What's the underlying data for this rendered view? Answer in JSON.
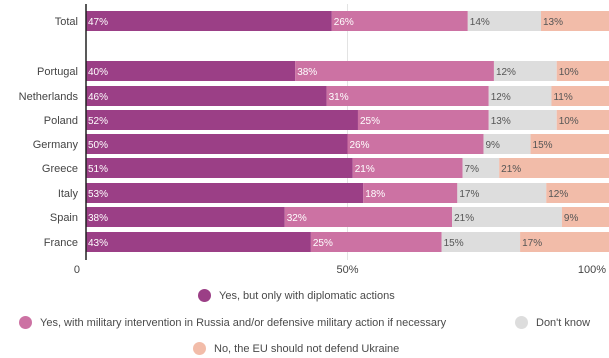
{
  "chart_data": {
    "type": "bar",
    "orientation": "horizontal",
    "stacked": true,
    "categories": [
      "Total",
      "Portugal",
      "Netherlands",
      "Poland",
      "Germany",
      "Greece",
      "Italy",
      "Spain",
      "France"
    ],
    "series": [
      {
        "name": "Yes, but only with diplomatic actions",
        "values": [
          47,
          40,
          46,
          52,
          50,
          51,
          53,
          38,
          43
        ],
        "labels": [
          "47%",
          "40%",
          "46%",
          "52%",
          "50%",
          "51%",
          "53%",
          "38%",
          "43%"
        ],
        "color": "#9b3f86"
      },
      {
        "name": "Yes, with military intervention in Russia and/or defensive military action if necessary",
        "values": [
          26,
          38,
          31,
          25,
          26,
          21,
          18,
          32,
          25
        ],
        "labels": [
          "26%",
          "38%",
          "31%",
          "25%",
          "26%",
          "21%",
          "18%",
          "32%",
          "25%"
        ],
        "color": "#cc72a3"
      },
      {
        "name": "Don't know",
        "values": [
          14,
          12,
          12,
          13,
          9,
          7,
          17,
          21,
          15
        ],
        "labels": [
          "14%",
          "12%",
          "12%",
          "13%",
          "9%",
          "7%",
          "17%",
          "21%",
          "15%"
        ],
        "color": "#dddddd"
      },
      {
        "name": "No, the EU should not defend Ukraine",
        "values": [
          13,
          10,
          11,
          10,
          15,
          21,
          12,
          9,
          17
        ],
        "labels": [
          "13%",
          "10%",
          "11%",
          "10%",
          "15%",
          "21%",
          "12%",
          "9%",
          "17%"
        ],
        "color": "#f2bca9"
      }
    ],
    "xticks": [
      "0",
      "50%",
      "100%"
    ],
    "xlim": [
      0,
      100
    ],
    "grid": true,
    "legend_position": "bottom"
  }
}
